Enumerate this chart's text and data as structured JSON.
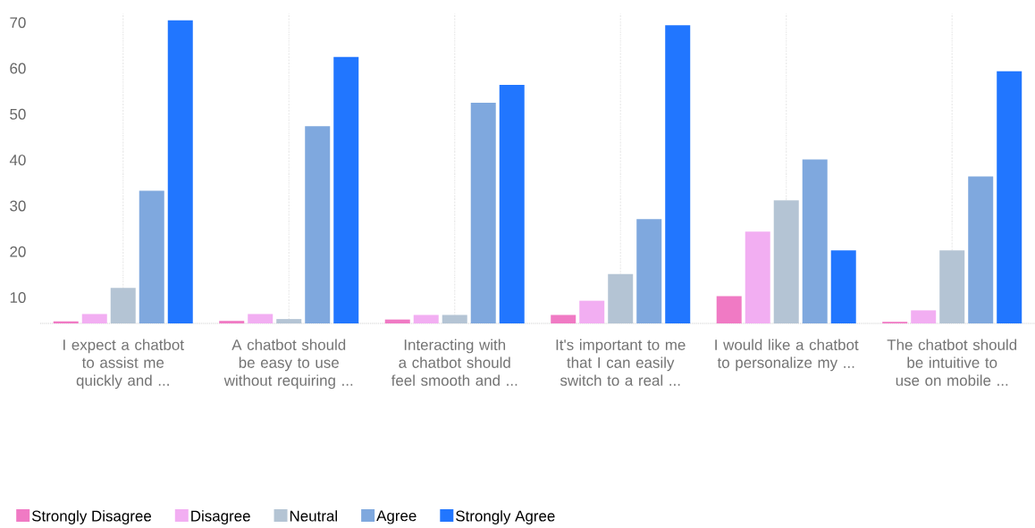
{
  "chart_data": {
    "type": "bar",
    "categories": [
      "I expect a chatbot to assist me quickly and ...",
      "A chatbot should be easy to use without requiring ...",
      "Interacting with a chatbot should feel smooth and ...",
      "It's important to me that I can easily switch to a real ...",
      "I would like a chatbot to personalize my ...",
      "The chatbot should be intuitive to use on mobile ..."
    ],
    "series": [
      {
        "name": "Strongly Disagree",
        "color": "#f07ac4",
        "values": [
          4.8,
          4.9,
          5.2,
          6.2,
          10.3,
          4.7
        ]
      },
      {
        "name": "Disagree",
        "color": "#f2aef2",
        "values": [
          6.4,
          6.4,
          6.2,
          9.3,
          24.4,
          7.2
        ]
      },
      {
        "name": "Neutral",
        "color": "#b4c4d4",
        "values": [
          12.1,
          5.3,
          6.2,
          15.1,
          31.2,
          20.3
        ]
      },
      {
        "name": "Agree",
        "color": "#7fa8de",
        "values": [
          33.3,
          47.4,
          52.5,
          27.1,
          40.1,
          36.4
        ]
      },
      {
        "name": "Strongly Agree",
        "color": "#2176ff",
        "values": [
          70.5,
          62.5,
          56.4,
          69.4,
          20.3,
          59.4
        ]
      }
    ],
    "ylim": [
      4.35,
      72
    ],
    "yticks": [
      10,
      20,
      30,
      40,
      50,
      60,
      70
    ],
    "grid": "x",
    "legend": "bottom"
  }
}
